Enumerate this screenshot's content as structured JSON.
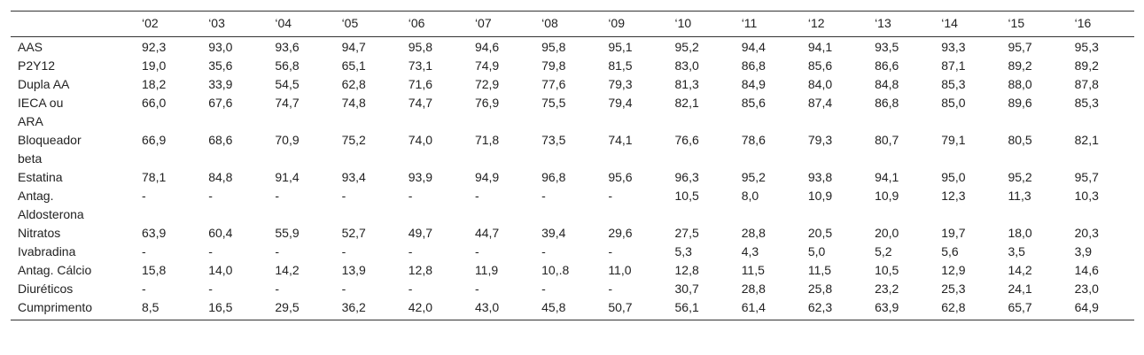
{
  "table": {
    "header": [
      "",
      "‘02",
      "‘03",
      "‘04",
      "‘05",
      "‘06",
      "‘07",
      "‘08",
      "‘09",
      "‘10",
      "‘11",
      "‘12",
      "‘13",
      "‘14",
      "‘15",
      "‘16"
    ],
    "rows": [
      [
        "AAS",
        "92,3",
        "93,0",
        "93,6",
        "94,7",
        "95,8",
        "94,6",
        "95,8",
        "95,1",
        "95,2",
        "94,4",
        "94,1",
        "93,5",
        "93,3",
        "95,7",
        "95,3"
      ],
      [
        "P2Y12",
        "19,0",
        "35,6",
        "56,8",
        "65,1",
        "73,1",
        "74,9",
        "79,8",
        "81,5",
        "83,0",
        "86,8",
        "85,6",
        "86,6",
        "87,1",
        "89,2",
        "89,2"
      ],
      [
        "Dupla AA",
        "18,2",
        "33,9",
        "54,5",
        "62,8",
        "71,6",
        "72,9",
        "77,6",
        "79,3",
        "81,3",
        "84,9",
        "84,0",
        "84,8",
        "85,3",
        "88,0",
        "87,8"
      ],
      [
        "IECA ou\nARA",
        "66,0",
        "67,6",
        "74,7",
        "74,8",
        "74,7",
        "76,9",
        "75,5",
        "79,4",
        "82,1",
        "85,6",
        "87,4",
        "86,8",
        "85,0",
        "89,6",
        "85,3"
      ],
      [
        "Bloqueador\nbeta",
        "66,9",
        "68,6",
        "70,9",
        "75,2",
        "74,0",
        "71,8",
        "73,5",
        "74,1",
        "76,6",
        "78,6",
        "79,3",
        "80,7",
        "79,1",
        "80,5",
        "82,1"
      ],
      [
        "Estatina",
        "78,1",
        "84,8",
        "91,4",
        "93,4",
        "93,9",
        "94,9",
        "96,8",
        "95,6",
        "96,3",
        "95,2",
        "93,8",
        "94,1",
        "95,0",
        "95,2",
        "95,7"
      ],
      [
        "Antag.\nAldosterona",
        "-",
        "-",
        "-",
        "-",
        "-",
        "-",
        "-",
        "-",
        "10,5",
        "8,0",
        "10,9",
        "10,9",
        "12,3",
        "11,3",
        "10,3"
      ],
      [
        "Nitratos",
        "63,9",
        "60,4",
        "55,9",
        "52,7",
        "49,7",
        "44,7",
        "39,4",
        "29,6",
        "27,5",
        "28,8",
        "20,5",
        "20,0",
        "19,7",
        "18,0",
        "20,3"
      ],
      [
        "Ivabradina",
        "-",
        "-",
        "-",
        "-",
        "-",
        "-",
        "-",
        "-",
        "5,3",
        "4,3",
        "5,0",
        "5,2",
        "5,6",
        "3,5",
        "3,9"
      ],
      [
        "Antag. Cálcio",
        "15,8",
        "14,0",
        "14,2",
        "13,9",
        "12,8",
        "11,9",
        "10,.8",
        "11,0",
        "12,8",
        "11,5",
        "11,5",
        "10,5",
        "12,9",
        "14,2",
        "14,6"
      ],
      [
        "Diuréticos",
        "-",
        "-",
        "-",
        "-",
        "-",
        "-",
        "-",
        "-",
        "30,7",
        "28,8",
        "25,8",
        "23,2",
        "25,3",
        "24,1",
        "23,0"
      ],
      [
        "Cumprimento",
        "8,5",
        "16,5",
        "29,5",
        "36,2",
        "42,0",
        "43,0",
        "45,8",
        "50,7",
        "56,1",
        "61,4",
        "62,3",
        "63,9",
        "62,8",
        "65,7",
        "64,9"
      ]
    ]
  }
}
